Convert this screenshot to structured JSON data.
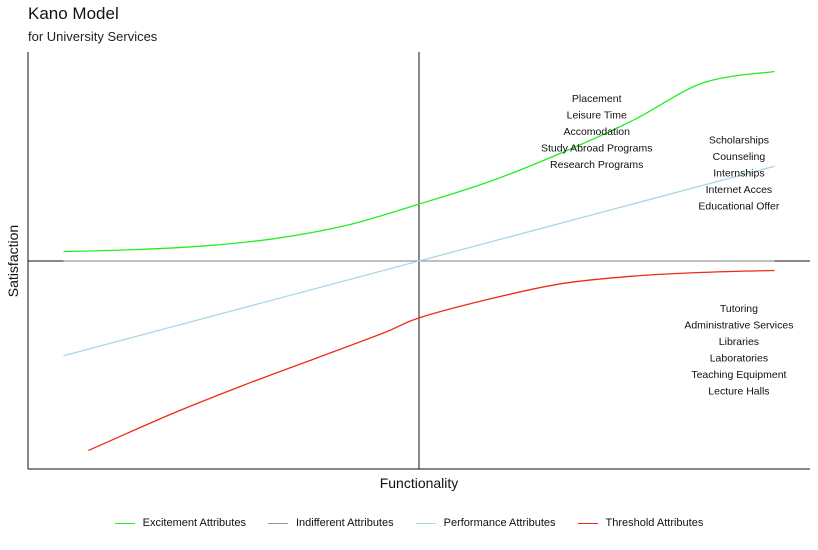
{
  "chart_data": {
    "type": "line",
    "title": "Kano Model",
    "subtitle": "for University Services",
    "xlabel": "Functionality",
    "ylabel": "Satisfaction",
    "xlim": [
      -1.1,
      1.1
    ],
    "ylim": [
      -1.1,
      1.1
    ],
    "grid": false,
    "legend_position": "bottom",
    "series": [
      {
        "name": "Excitement Attributes",
        "color": "#22ee22",
        "x": [
          -1.0,
          -0.8,
          -0.6,
          -0.4,
          -0.2,
          0.0,
          0.2,
          0.4,
          0.6,
          0.8,
          1.0
        ],
        "values": [
          0.05,
          0.06,
          0.08,
          0.12,
          0.19,
          0.3,
          0.42,
          0.57,
          0.74,
          0.94,
          1.0
        ]
      },
      {
        "name": "Indifferent Attributes",
        "color": "#999999",
        "x": [
          -1.0,
          1.0
        ],
        "values": [
          0.0,
          0.0
        ]
      },
      {
        "name": "Performance Attributes",
        "color": "#a6d8e6",
        "x": [
          -1.0,
          1.0
        ],
        "values": [
          -0.5,
          0.5
        ]
      },
      {
        "name": "Threshold Attributes",
        "color": "#ee2a1a",
        "x": [
          -0.93,
          -0.7,
          -0.5,
          -0.3,
          -0.1,
          0.0,
          0.2,
          0.4,
          0.6,
          0.8,
          1.0
        ],
        "values": [
          -1.0,
          -0.81,
          -0.66,
          -0.52,
          -0.38,
          -0.3,
          -0.2,
          -0.12,
          -0.08,
          -0.06,
          -0.05
        ]
      }
    ],
    "annotations": [
      {
        "group": "excitement",
        "x": 0.5,
        "y": 0.84,
        "labels": [
          "Placement",
          "Leisure Time",
          "Accomodation",
          "Study Abroad Programs",
          "Research Programs"
        ]
      },
      {
        "group": "performance",
        "x": 0.9,
        "y": 0.62,
        "labels": [
          "Scholarships",
          "Counseling",
          "Internships",
          "Internet Acces",
          "Educational Offer"
        ]
      },
      {
        "group": "threshold",
        "x": 0.9,
        "y": -0.27,
        "labels": [
          "Tutoring",
          "Administrative Services",
          "Libraries",
          "Laboratories",
          "Teaching Equipment",
          "Lecture Halls"
        ]
      }
    ]
  }
}
